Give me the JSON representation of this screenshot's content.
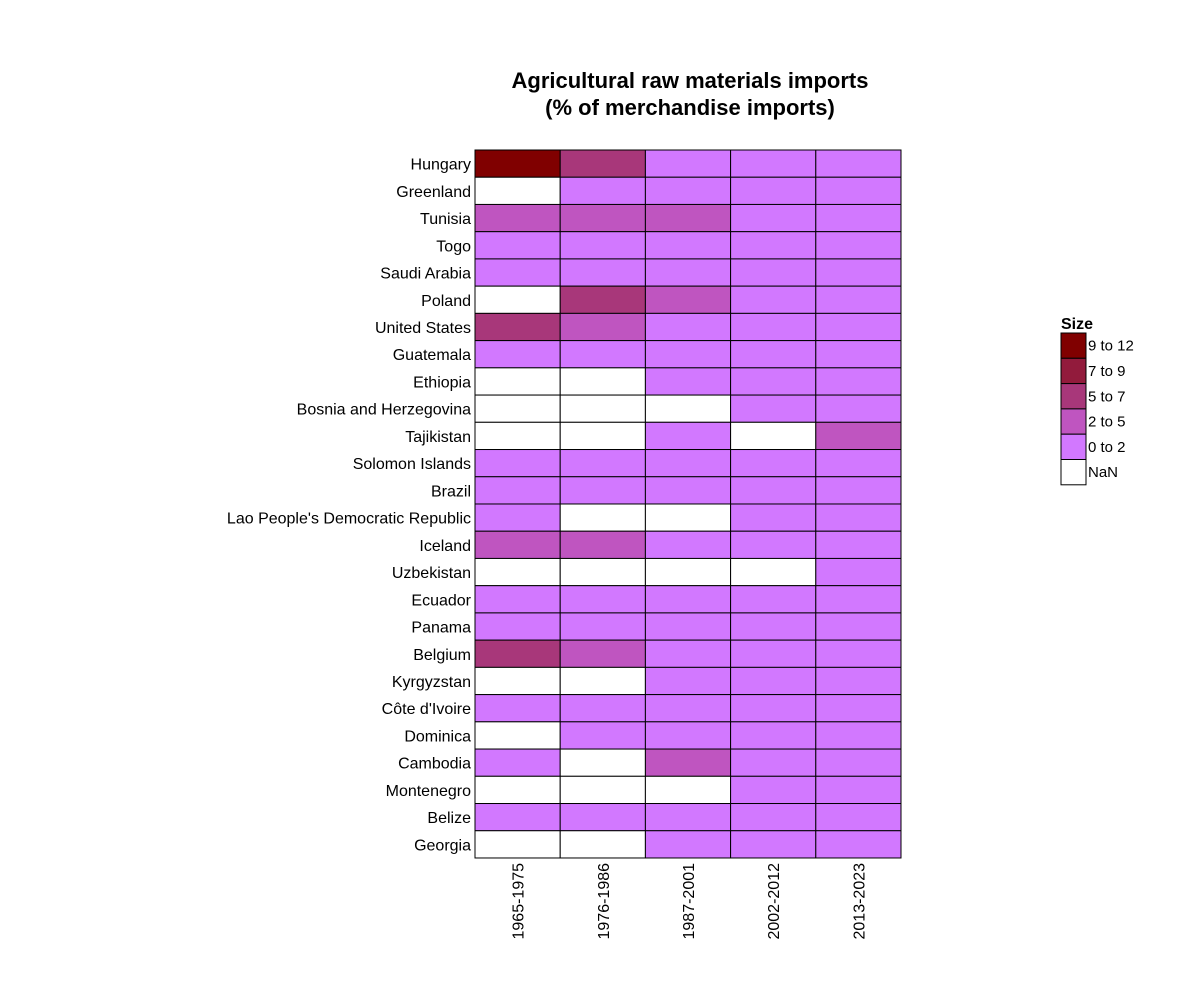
{
  "chart_data": {
    "type": "heatmap",
    "title": "Agricultural raw materials imports\n(% of merchandise imports)",
    "xlabel": "",
    "ylabel": "",
    "columns": [
      "1965-1975",
      "1976-1986",
      "1987-2001",
      "2002-2012",
      "2013-2023"
    ],
    "rows": [
      "Hungary",
      "Greenland",
      "Tunisia",
      "Togo",
      "Saudi Arabia",
      "Poland",
      "United States",
      "Guatemala",
      "Ethiopia",
      "Bosnia and Herzegovina",
      "Tajikistan",
      "Solomon Islands",
      "Brazil",
      "Lao People's Democratic Republic",
      "Iceland",
      "Uzbekistan",
      "Ecuador",
      "Panama",
      "Belgium",
      "Kyrgyzstan",
      "Côte d'Ivoire",
      "Dominica",
      "Cambodia",
      "Montenegro",
      "Belize",
      "Georgia"
    ],
    "cells": [
      [
        "9 to 12",
        "5 to 7",
        "0 to 2",
        "0 to 2",
        "0 to 2"
      ],
      [
        "NaN",
        "0 to 2",
        "0 to 2",
        "0 to 2",
        "0 to 2"
      ],
      [
        "2 to 5",
        "2 to 5",
        "2 to 5",
        "0 to 2",
        "0 to 2"
      ],
      [
        "0 to 2",
        "0 to 2",
        "0 to 2",
        "0 to 2",
        "0 to 2"
      ],
      [
        "0 to 2",
        "0 to 2",
        "0 to 2",
        "0 to 2",
        "0 to 2"
      ],
      [
        "NaN",
        "5 to 7",
        "2 to 5",
        "0 to 2",
        "0 to 2"
      ],
      [
        "5 to 7",
        "2 to 5",
        "0 to 2",
        "0 to 2",
        "0 to 2"
      ],
      [
        "0 to 2",
        "0 to 2",
        "0 to 2",
        "0 to 2",
        "0 to 2"
      ],
      [
        "NaN",
        "NaN",
        "0 to 2",
        "0 to 2",
        "0 to 2"
      ],
      [
        "NaN",
        "NaN",
        "NaN",
        "0 to 2",
        "0 to 2"
      ],
      [
        "NaN",
        "NaN",
        "0 to 2",
        "NaN",
        "2 to 5"
      ],
      [
        "0 to 2",
        "0 to 2",
        "0 to 2",
        "0 to 2",
        "0 to 2"
      ],
      [
        "0 to 2",
        "0 to 2",
        "0 to 2",
        "0 to 2",
        "0 to 2"
      ],
      [
        "0 to 2",
        "NaN",
        "NaN",
        "0 to 2",
        "0 to 2"
      ],
      [
        "2 to 5",
        "2 to 5",
        "0 to 2",
        "0 to 2",
        "0 to 2"
      ],
      [
        "NaN",
        "NaN",
        "NaN",
        "NaN",
        "0 to 2"
      ],
      [
        "0 to 2",
        "0 to 2",
        "0 to 2",
        "0 to 2",
        "0 to 2"
      ],
      [
        "0 to 2",
        "0 to 2",
        "0 to 2",
        "0 to 2",
        "0 to 2"
      ],
      [
        "5 to 7",
        "2 to 5",
        "0 to 2",
        "0 to 2",
        "0 to 2"
      ],
      [
        "NaN",
        "NaN",
        "0 to 2",
        "0 to 2",
        "0 to 2"
      ],
      [
        "0 to 2",
        "0 to 2",
        "0 to 2",
        "0 to 2",
        "0 to 2"
      ],
      [
        "NaN",
        "0 to 2",
        "0 to 2",
        "0 to 2",
        "0 to 2"
      ],
      [
        "0 to 2",
        "NaN",
        "2 to 5",
        "0 to 2",
        "0 to 2"
      ],
      [
        "NaN",
        "NaN",
        "NaN",
        "0 to 2",
        "0 to 2"
      ],
      [
        "0 to 2",
        "0 to 2",
        "0 to 2",
        "0 to 2",
        "0 to 2"
      ],
      [
        "NaN",
        "NaN",
        "0 to 2",
        "0 to 2",
        "0 to 2"
      ]
    ],
    "legend": {
      "title": "Size",
      "placement": "right",
      "entries": [
        {
          "label": "9 to 12",
          "color": "#800000"
        },
        {
          "label": "7 to 9",
          "color": "#921b3c"
        },
        {
          "label": "5 to 7",
          "color": "#a8377a"
        },
        {
          "label": "2 to 5",
          "color": "#bf55c0"
        },
        {
          "label": "0 to 2",
          "color": "#d278ff"
        },
        {
          "label": "NaN",
          "color": "#ffffff"
        }
      ]
    },
    "cell_border_color": "#000000",
    "grid": false
  }
}
